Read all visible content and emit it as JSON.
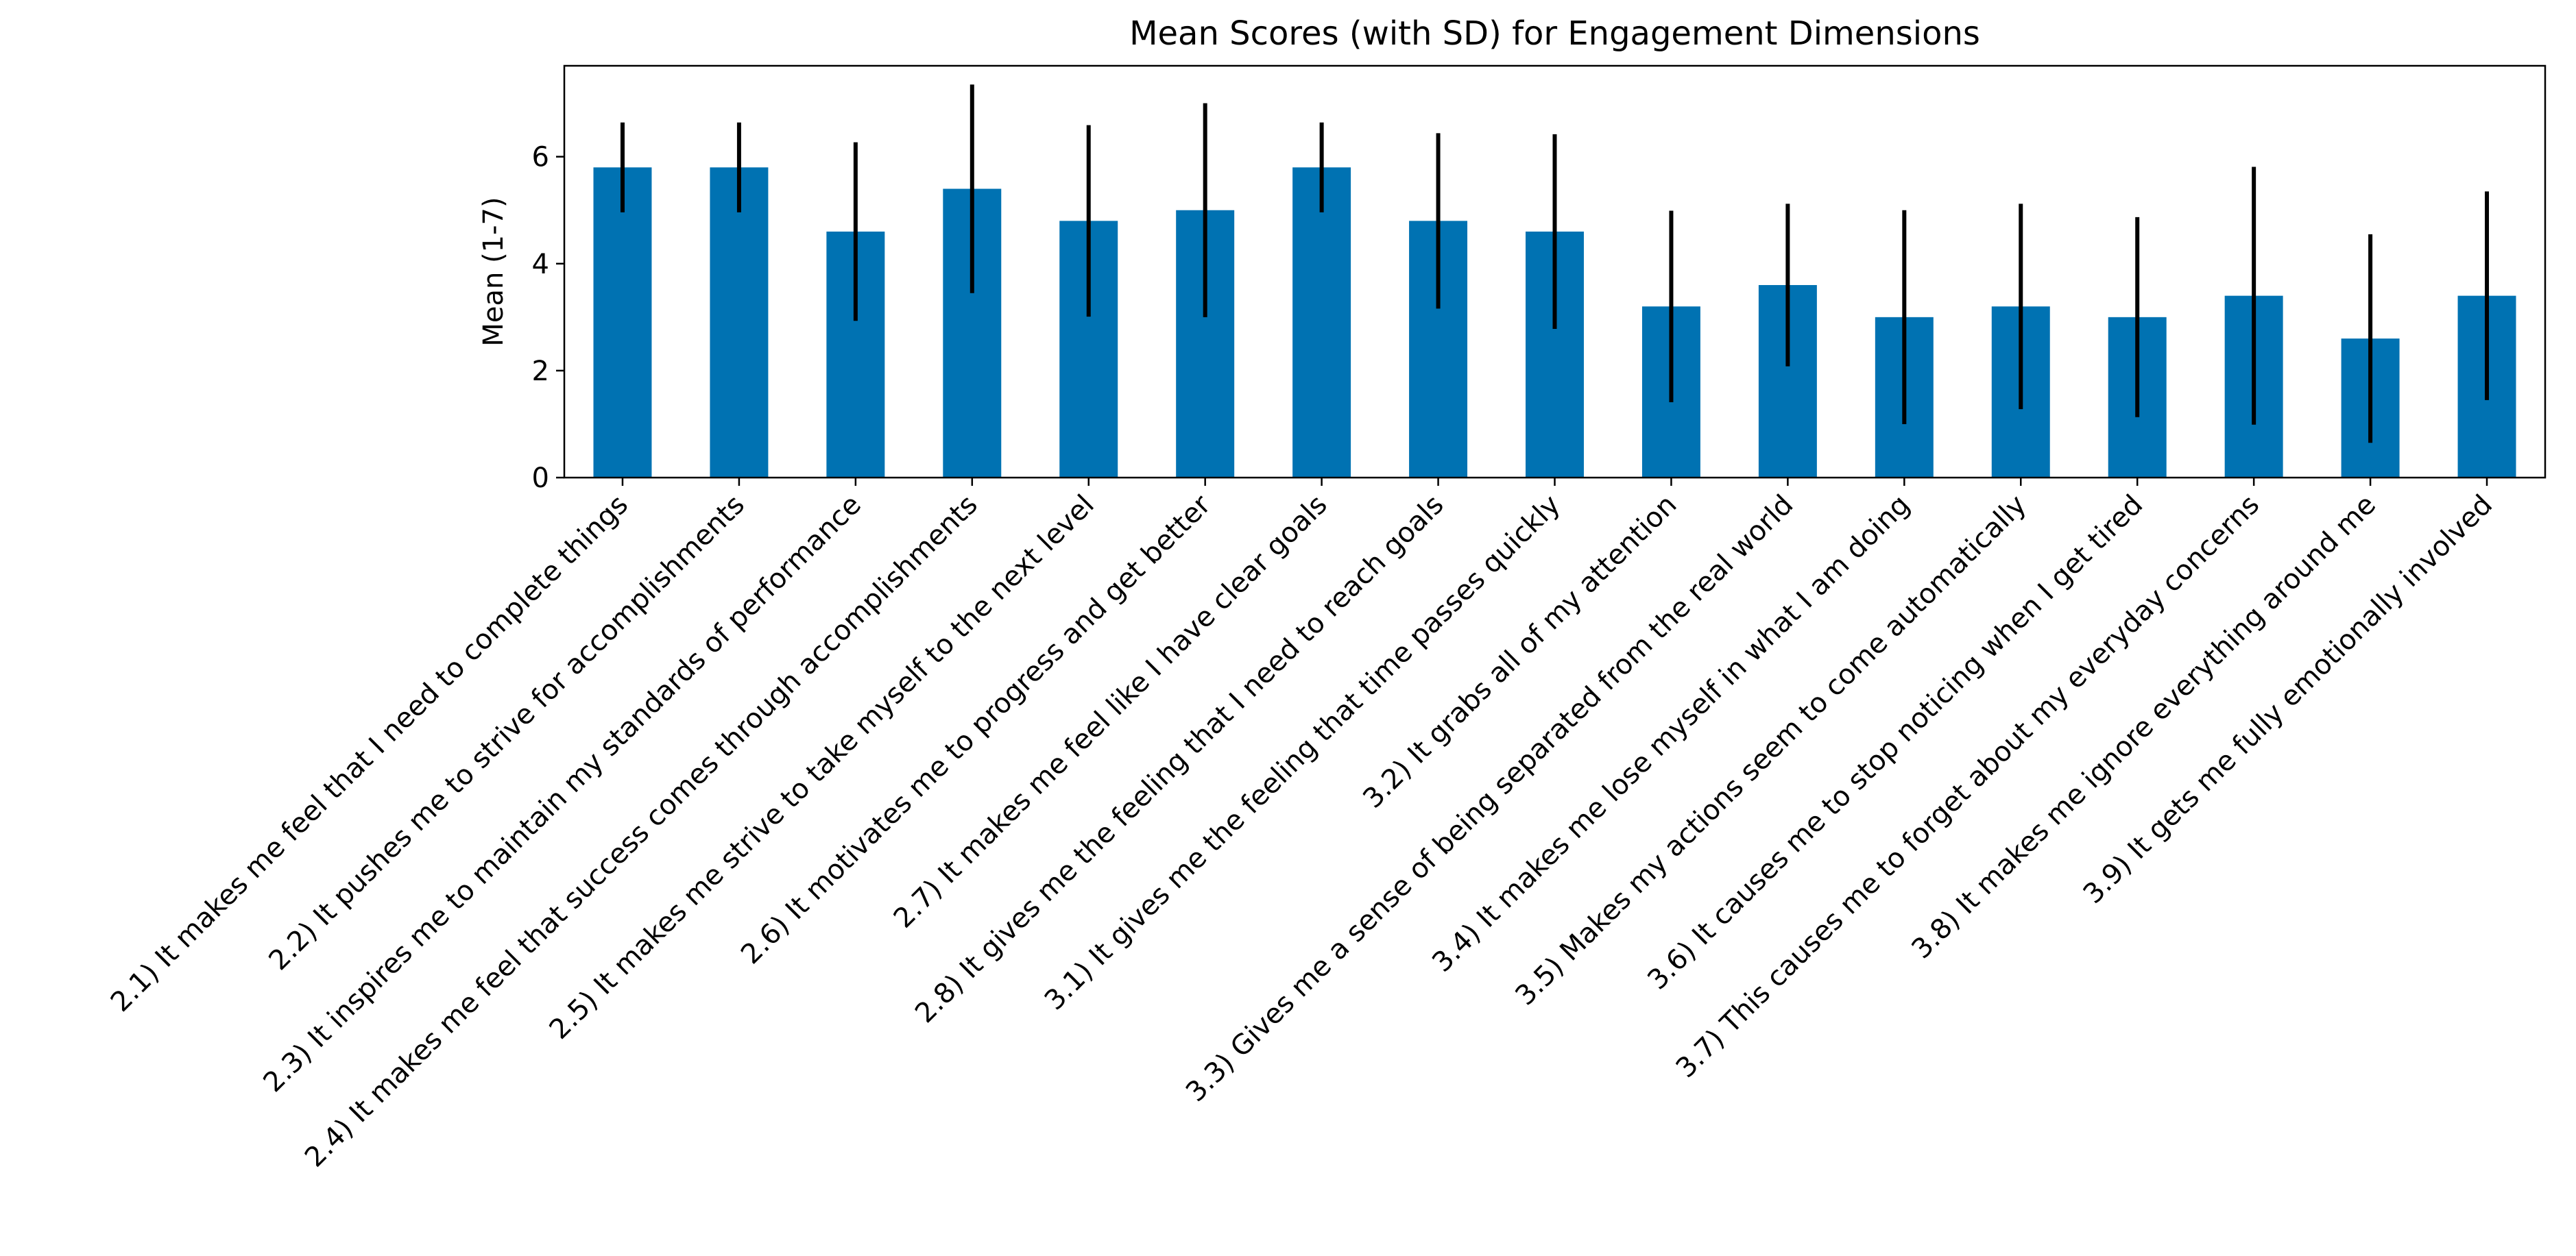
{
  "chart_data": {
    "type": "bar",
    "title": "Mean Scores (with SD) for Engagement Dimensions",
    "xlabel": "",
    "ylabel": "Mean (1-7)",
    "ylim": [
      0,
      7.7
    ],
    "yticks": [
      0,
      2,
      4,
      6
    ],
    "grid": false,
    "bar_color": "#0072B2",
    "errorbar_color": "#000000",
    "categories": [
      "2.1) It makes me feel that I need to complete things",
      "2.2) It pushes me to strive for accomplishments",
      "2.3) It inspires me to maintain my standards of performance",
      "2.4) It makes me feel that success comes through accomplishments",
      "2.5) It makes me strive to take myself to the next level",
      "2.6) It motivates me to progress and get better",
      "2.7) It makes me feel like I have clear goals",
      "2.8) It gives me the feeling that I need to reach goals",
      "3.1) It gives me the feeling that time passes quickly",
      "3.2) It grabs all of my attention",
      "3.3) Gives me a sense of being separated from the real world",
      "3.4) It makes me lose myself in what I am doing",
      "3.5) Makes my actions seem to come automatically",
      "3.6) It causes me to stop noticing when I get tired",
      "3.7) This causes me to forget about my everyday concerns",
      "3.8) It makes me ignore everything around me",
      "3.9) It gets me fully emotionally involved"
    ],
    "values": [
      5.8,
      5.8,
      4.6,
      5.4,
      4.8,
      5.0,
      5.8,
      4.8,
      4.6,
      3.2,
      3.6,
      3.0,
      3.2,
      3.0,
      3.4,
      2.6,
      3.4
    ],
    "sd": [
      0.84,
      0.84,
      1.67,
      1.95,
      1.79,
      2.0,
      0.84,
      1.64,
      1.82,
      1.79,
      1.52,
      2.0,
      1.92,
      1.87,
      2.41,
      1.95,
      1.95
    ]
  }
}
